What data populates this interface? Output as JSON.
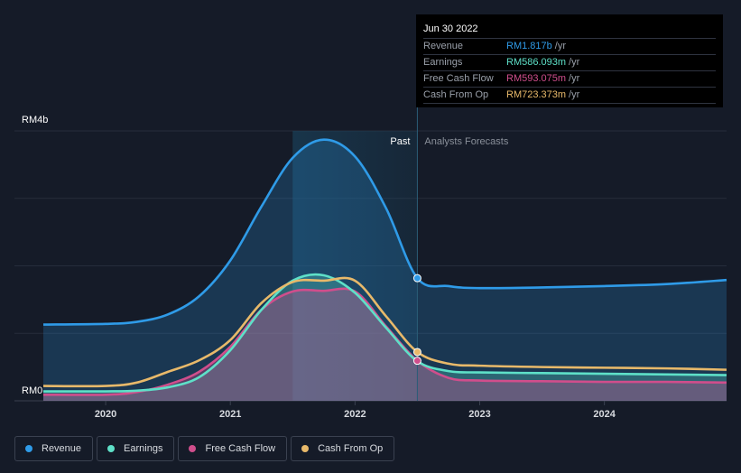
{
  "chart_data": {
    "type": "area",
    "y_unit_top_label": "RM4b",
    "y_unit_bottom_label": "RM0",
    "ylim": [
      0,
      4
    ],
    "ylim_unit": "RM billions",
    "xlim": [
      2019.5,
      2024.98
    ],
    "x_ticks": [
      {
        "value": 2020,
        "label": "2020"
      },
      {
        "value": 2021,
        "label": "2021"
      },
      {
        "value": 2022,
        "label": "2022"
      },
      {
        "value": 2023,
        "label": "2023"
      },
      {
        "value": 2024,
        "label": "2024"
      }
    ],
    "past_label": "Past",
    "forecast_label": "Analysts Forecasts",
    "past_boundary": 2022.5,
    "highlight_start": 2021.5,
    "series": [
      {
        "name": "Revenue",
        "color": "#2f9be8",
        "fill": true,
        "points": [
          [
            2019.5,
            1.13
          ],
          [
            2020.0,
            1.14
          ],
          [
            2020.25,
            1.17
          ],
          [
            2020.5,
            1.28
          ],
          [
            2020.75,
            1.55
          ],
          [
            2021.0,
            2.08
          ],
          [
            2021.25,
            2.88
          ],
          [
            2021.5,
            3.6
          ],
          [
            2021.75,
            3.87
          ],
          [
            2022.0,
            3.62
          ],
          [
            2022.25,
            2.85
          ],
          [
            2022.5,
            1.817
          ],
          [
            2022.75,
            1.7
          ],
          [
            2023.0,
            1.67
          ],
          [
            2023.5,
            1.68
          ],
          [
            2024.0,
            1.7
          ],
          [
            2024.5,
            1.73
          ],
          [
            2024.98,
            1.79
          ]
        ]
      },
      {
        "name": "Earnings",
        "color": "#5ee0c8",
        "fill": true,
        "points": [
          [
            2019.5,
            0.14
          ],
          [
            2020.0,
            0.14
          ],
          [
            2020.25,
            0.15
          ],
          [
            2020.5,
            0.2
          ],
          [
            2020.75,
            0.35
          ],
          [
            2021.0,
            0.75
          ],
          [
            2021.25,
            1.35
          ],
          [
            2021.5,
            1.78
          ],
          [
            2021.75,
            1.86
          ],
          [
            2022.0,
            1.6
          ],
          [
            2022.25,
            1.08
          ],
          [
            2022.5,
            0.586
          ],
          [
            2022.75,
            0.44
          ],
          [
            2023.0,
            0.42
          ],
          [
            2023.5,
            0.41
          ],
          [
            2024.0,
            0.4
          ],
          [
            2024.5,
            0.39
          ],
          [
            2024.98,
            0.38
          ]
        ]
      },
      {
        "name": "Free Cash Flow",
        "color": "#d04e8c",
        "fill": true,
        "points": [
          [
            2019.5,
            0.09
          ],
          [
            2020.0,
            0.09
          ],
          [
            2020.25,
            0.13
          ],
          [
            2020.5,
            0.24
          ],
          [
            2020.75,
            0.43
          ],
          [
            2021.0,
            0.8
          ],
          [
            2021.25,
            1.35
          ],
          [
            2021.5,
            1.62
          ],
          [
            2021.75,
            1.63
          ],
          [
            2022.0,
            1.62
          ],
          [
            2022.25,
            1.1
          ],
          [
            2022.5,
            0.593
          ],
          [
            2022.75,
            0.34
          ],
          [
            2023.0,
            0.3
          ],
          [
            2023.5,
            0.29
          ],
          [
            2024.0,
            0.28
          ],
          [
            2024.5,
            0.28
          ],
          [
            2024.98,
            0.27
          ]
        ]
      },
      {
        "name": "Cash From Op",
        "color": "#e8b96a",
        "fill": false,
        "points": [
          [
            2019.5,
            0.22
          ],
          [
            2020.0,
            0.22
          ],
          [
            2020.25,
            0.27
          ],
          [
            2020.5,
            0.43
          ],
          [
            2020.75,
            0.6
          ],
          [
            2021.0,
            0.9
          ],
          [
            2021.25,
            1.45
          ],
          [
            2021.5,
            1.76
          ],
          [
            2021.75,
            1.78
          ],
          [
            2022.0,
            1.78
          ],
          [
            2022.25,
            1.25
          ],
          [
            2022.5,
            0.723
          ],
          [
            2022.75,
            0.55
          ],
          [
            2023.0,
            0.52
          ],
          [
            2023.5,
            0.5
          ],
          [
            2024.0,
            0.49
          ],
          [
            2024.5,
            0.48
          ],
          [
            2024.98,
            0.46
          ]
        ]
      }
    ]
  },
  "tooltip": {
    "date": "Jun 30 2022",
    "rows": [
      {
        "label": "Revenue",
        "value": "RM1.817b",
        "unit": "/yr",
        "color": "#2f9be8"
      },
      {
        "label": "Earnings",
        "value": "RM586.093m",
        "unit": "/yr",
        "color": "#5ee0c8"
      },
      {
        "label": "Free Cash Flow",
        "value": "RM593.075m",
        "unit": "/yr",
        "color": "#d04e8c"
      },
      {
        "label": "Cash From Op",
        "value": "RM723.373m",
        "unit": "/yr",
        "color": "#e8b96a"
      }
    ]
  },
  "legend": [
    {
      "label": "Revenue",
      "color": "#2f9be8"
    },
    {
      "label": "Earnings",
      "color": "#5ee0c8"
    },
    {
      "label": "Free Cash Flow",
      "color": "#d04e8c"
    },
    {
      "label": "Cash From Op",
      "color": "#e8b96a"
    }
  ]
}
